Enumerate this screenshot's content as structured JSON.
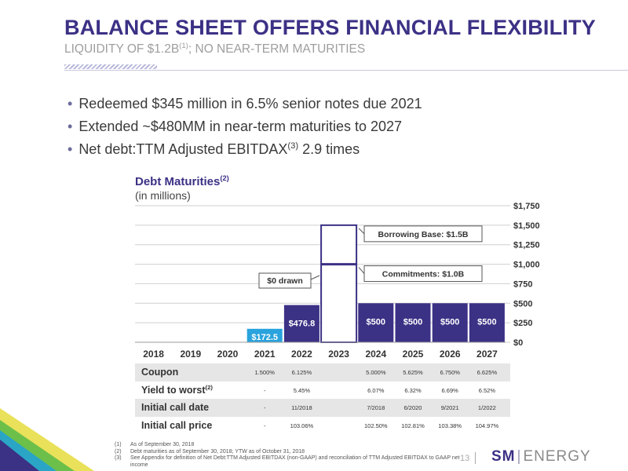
{
  "header": {
    "title": "BALANCE SHEET OFFERS FINANCIAL FLEXIBILITY",
    "subtitle_main": "LIQUIDITY OF $1.2B",
    "subtitle_sup": "(1)",
    "subtitle_rest": "; NO NEAR-TERM MATURITIES"
  },
  "bullets": [
    {
      "text": "Redeemed $345 million in 6.5% senior notes due 2021",
      "sup": "",
      "rest": ""
    },
    {
      "text": "Extended ~$480MM in near-term maturities to 2027",
      "sup": "",
      "rest": ""
    },
    {
      "text": "Net debt:TTM Adjusted EBITDAX",
      "sup": "(3)",
      "rest": " 2.9 times"
    }
  ],
  "chart_data": {
    "type": "bar",
    "title": "Debt Maturities",
    "title_sup": "(2)",
    "subtitle": "(in millions)",
    "categories": [
      "2018",
      "2019",
      "2020",
      "2021",
      "2022",
      "2023",
      "2024",
      "2025",
      "2026",
      "2027"
    ],
    "values": [
      0,
      0,
      0,
      172.5,
      476.8,
      0,
      500,
      500,
      500,
      500
    ],
    "value_labels": [
      "",
      "",
      "",
      "$172.5",
      "$476.8",
      "",
      "$500",
      "$500",
      "$500",
      "$500"
    ],
    "ylim": [
      0,
      1750
    ],
    "yticks": [
      0,
      250,
      500,
      750,
      1000,
      1250,
      1500,
      1750
    ],
    "ytick_labels": [
      "$0",
      "$250",
      "$500",
      "$750",
      "$1,000",
      "$1,250",
      "$1,500",
      "$1,750"
    ],
    "grid": true,
    "y_axis_position": "right",
    "revolver": {
      "category": "2023",
      "borrowing_base": 1500,
      "commitments": 1000,
      "drawn": 0,
      "borrowing_base_label": "Borrowing Base: $1.5B",
      "commitments_label": "Commitments: $1.0B",
      "drawn_label": "$0 drawn"
    },
    "colors": {
      "bar": "#3b3185",
      "highlight": "#29a3dd",
      "outline": "#3b3185",
      "grid": "#cfcfcf",
      "text": "#333333"
    }
  },
  "table": {
    "rows": [
      {
        "label": "Coupon",
        "sup": "",
        "cells": {
          "2021": "1.500%",
          "2022": "6.125%",
          "2024": "5.000%",
          "2025": "5.625%",
          "2026": "6.750%",
          "2027": "6.625%"
        }
      },
      {
        "label": "Yield to worst",
        "sup": "(2)",
        "cells": {
          "2021": "-",
          "2022": "5.45%",
          "2024": "6.07%",
          "2025": "6.32%",
          "2026": "6.69%",
          "2027": "6.52%"
        }
      },
      {
        "label": "Initial call date",
        "sup": "",
        "cells": {
          "2021": "-",
          "2022": "11/2018",
          "2024": "7/2018",
          "2025": "6/2020",
          "2026": "9/2021",
          "2027": "1/2022"
        }
      },
      {
        "label": "Initial call price",
        "sup": "",
        "cells": {
          "2021": "-",
          "2022": "103.06%",
          "2024": "102.50%",
          "2025": "102.81%",
          "2026": "103.38%",
          "2027": "104.97%"
        }
      }
    ]
  },
  "footnotes": [
    {
      "num": "(1)",
      "text": "As of September 30, 2018"
    },
    {
      "num": "(2)",
      "text": "Debt maturities as of September 30, 2018; YTW as of October 31, 2018"
    },
    {
      "num": "(3)",
      "text": "See Appendix for definition of Net Debt:TTM Adjusted EBITDAX (non-GAAP) and reconciliation of TTM Adjusted EBITDAX to GAAP net income"
    }
  ],
  "footer": {
    "page_number": "13",
    "logo_sm": "SM",
    "logo_energy": "ENERGY"
  }
}
